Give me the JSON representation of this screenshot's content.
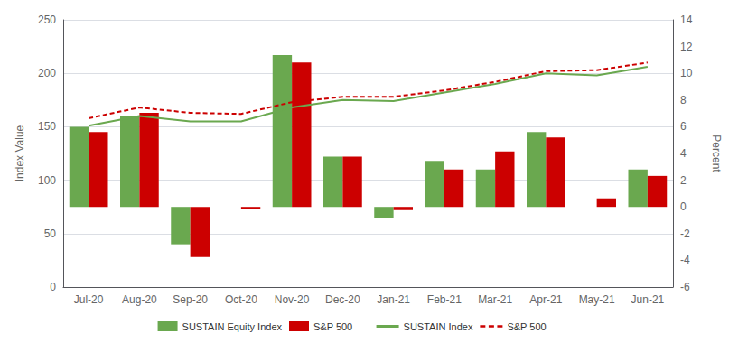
{
  "chart_data": {
    "type": "bar",
    "categories": [
      "Jul-20",
      "Aug-20",
      "Sep-20",
      "Oct-20",
      "Nov-20",
      "Dec-20",
      "Jan-21",
      "Feb-21",
      "Mar-21",
      "Apr-21",
      "May-21",
      "Jun-21"
    ],
    "ylabel": "Index Value",
    "y2label": "Percent",
    "ylim": [
      0,
      250
    ],
    "yticks": [
      0,
      50,
      100,
      150,
      200,
      250
    ],
    "y2lim": [
      -6,
      14
    ],
    "y2ticks": [
      -6,
      -4,
      -2,
      0,
      2,
      4,
      6,
      8,
      10,
      12,
      14
    ],
    "grid": true,
    "legend": "bottom",
    "baseline": 75,
    "series": [
      {
        "name": "SUSTAIN Equity Index",
        "type": "bar",
        "color": "#6AA84F",
        "values": [
          150,
          160,
          40,
          75,
          217,
          122,
          65,
          118,
          110,
          145,
          75,
          110
        ]
      },
      {
        "name": "S&P 500",
        "type": "bar",
        "color": "#CC0000",
        "values": [
          145,
          163,
          28,
          73,
          210,
          122,
          72,
          110,
          127,
          140,
          83,
          104
        ]
      },
      {
        "name": "SUSTAIN Index",
        "type": "line",
        "color": "#6AA84F",
        "line_style": "solid",
        "values": [
          151,
          160,
          155,
          155,
          168,
          175,
          174,
          182,
          190,
          200,
          198,
          206
        ]
      },
      {
        "name": "S&P 500",
        "type": "line",
        "color": "#CC0000",
        "line_style": "dashed",
        "values": [
          158,
          168,
          163,
          162,
          173,
          178,
          178,
          184,
          192,
          202,
          203,
          210
        ]
      }
    ]
  }
}
